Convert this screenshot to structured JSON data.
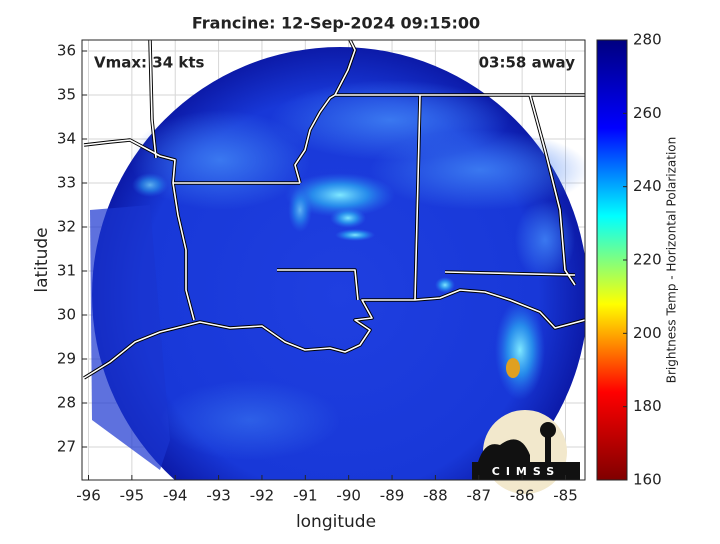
{
  "chart_data": {
    "type": "map",
    "title": "Francine: 12-Sep-2024 09:15:00",
    "annotations": [
      "Vmax: 34 kts",
      "03:58 away"
    ],
    "x_label": "longitude",
    "y_label": "latitude",
    "xlim": [
      -96.15,
      -84.55
    ],
    "ylim": [
      26.25,
      36.25
    ],
    "xticks": [
      -96,
      -95,
      -94,
      -93,
      -92,
      -91,
      -90,
      -89,
      -88,
      -87,
      -86,
      -85
    ],
    "yticks": [
      27,
      28,
      29,
      30,
      31,
      32,
      33,
      34,
      35,
      36
    ],
    "grid": true,
    "colorbar": {
      "label": "Brightness Temp - Horizontal Polarization",
      "clim": [
        160,
        280
      ],
      "ticks": [
        160,
        180,
        200,
        220,
        240,
        260,
        280
      ],
      "colors": [
        "#800000",
        "#ff0000",
        "#ffff00",
        "#00ffff",
        "#0000ff",
        "#000080"
      ]
    },
    "logo": "CIMSS"
  }
}
